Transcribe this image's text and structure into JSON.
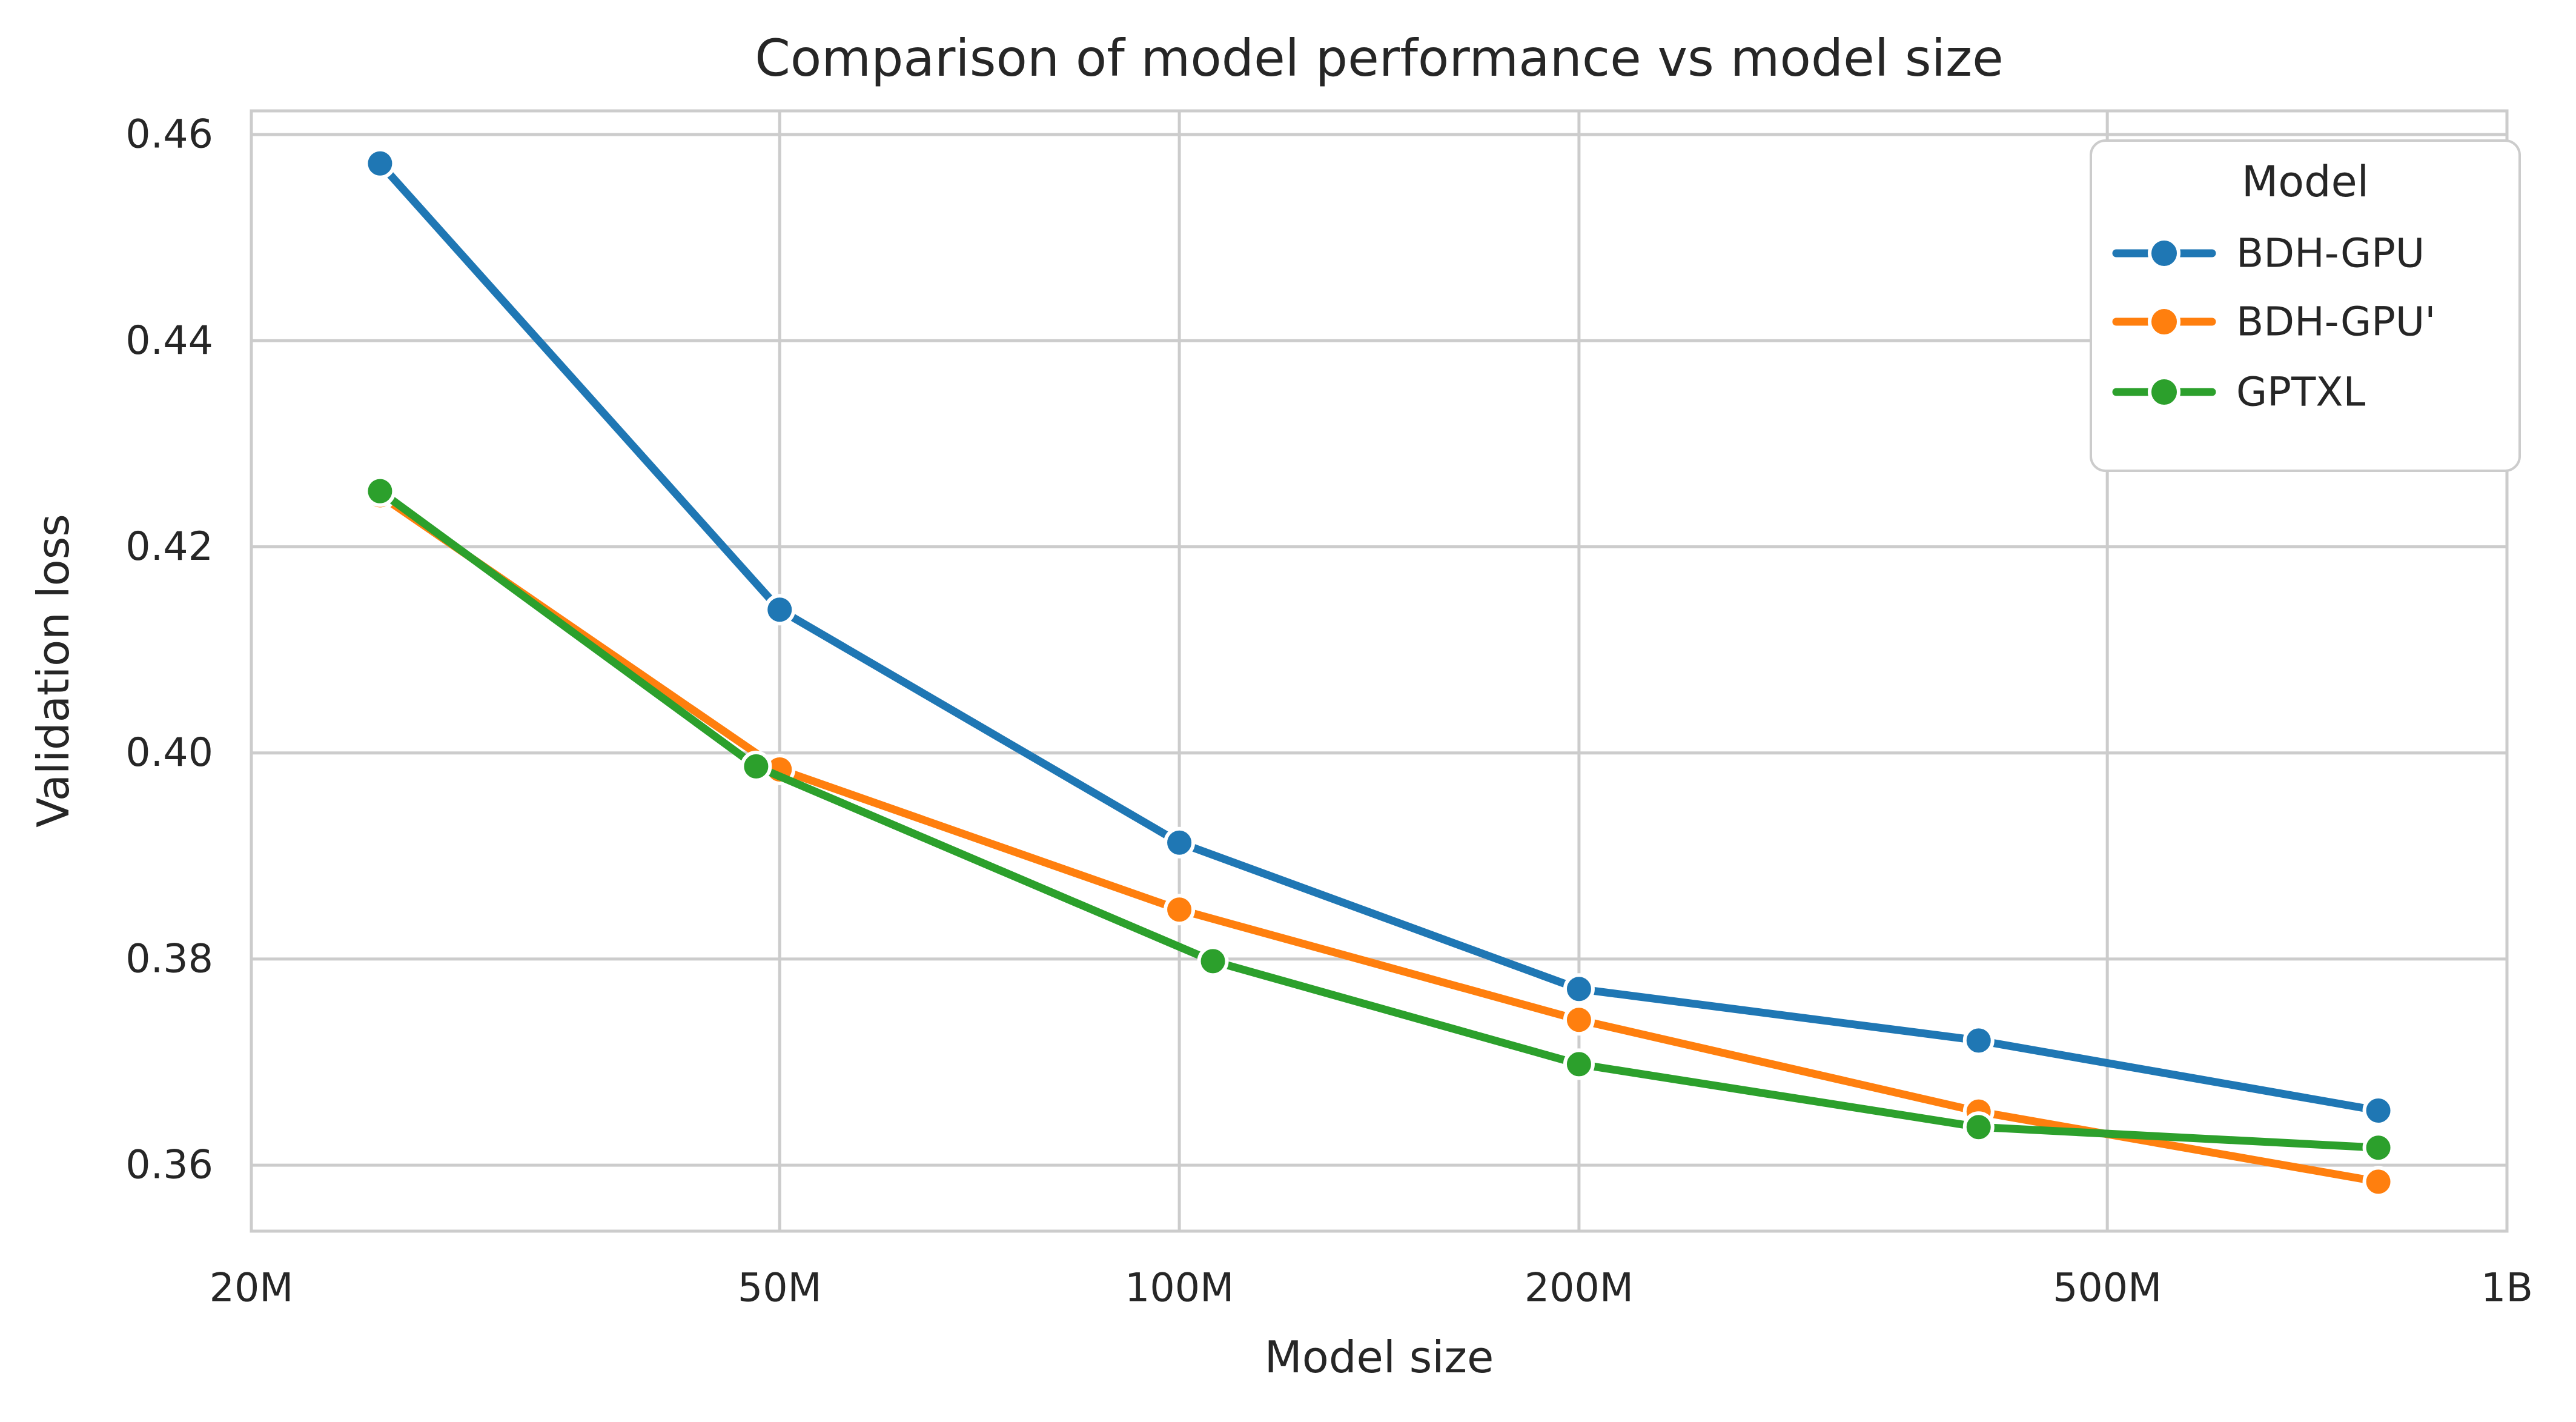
{
  "style": {
    "background": "#ffffff",
    "grid_color": "#cccccc",
    "spine_color": "#cccccc",
    "text_color": "#262626",
    "marker_edge_color": "#ffffff"
  },
  "chart_data": {
    "type": "line",
    "title": "Comparison of model performance vs model size",
    "xlabel": "Model size",
    "ylabel": "Validation loss",
    "x_scale": "log",
    "x_unit": "model parameters (millions)",
    "xlim_M": [
      20,
      1000
    ],
    "ylim": [
      0.3536,
      0.4623
    ],
    "grid": "on",
    "xticks": [
      {
        "value_M": 20,
        "label": "20M"
      },
      {
        "value_M": 50,
        "label": "50M"
      },
      {
        "value_M": 100,
        "label": "100M"
      },
      {
        "value_M": 200,
        "label": "200M"
      },
      {
        "value_M": 500,
        "label": "500M"
      },
      {
        "value_M": 1000,
        "label": "1B"
      }
    ],
    "yticks": [
      {
        "value": 0.46,
        "label": "0.46"
      },
      {
        "value": 0.44,
        "label": "0.44"
      },
      {
        "value": 0.42,
        "label": "0.42"
      },
      {
        "value": 0.4,
        "label": "0.40"
      },
      {
        "value": 0.38,
        "label": "0.38"
      },
      {
        "value": 0.36,
        "label": "0.36"
      }
    ],
    "legend": {
      "title": "Model",
      "position": "upper right"
    },
    "series": [
      {
        "name": "BDH-GPU",
        "color": "#1f77b4",
        "x_M": [
          25,
          50,
          100,
          200,
          400,
          800
        ],
        "y": [
          0.4572,
          0.4139,
          0.3913,
          0.3771,
          0.3721,
          0.3653
        ]
      },
      {
        "name": "BDH-GPU'",
        "color": "#ff7f0e",
        "x_M": [
          25,
          50,
          100,
          200,
          400,
          800
        ],
        "y": [
          0.425,
          0.3984,
          0.3848,
          0.3741,
          0.3652,
          0.3584
        ]
      },
      {
        "name": "GPTXL",
        "color": "#2ca02c",
        "x_M": [
          25,
          48,
          106,
          200,
          400,
          800
        ],
        "y": [
          0.4254,
          0.3987,
          0.3798,
          0.3698,
          0.3637,
          0.3617
        ]
      }
    ]
  }
}
